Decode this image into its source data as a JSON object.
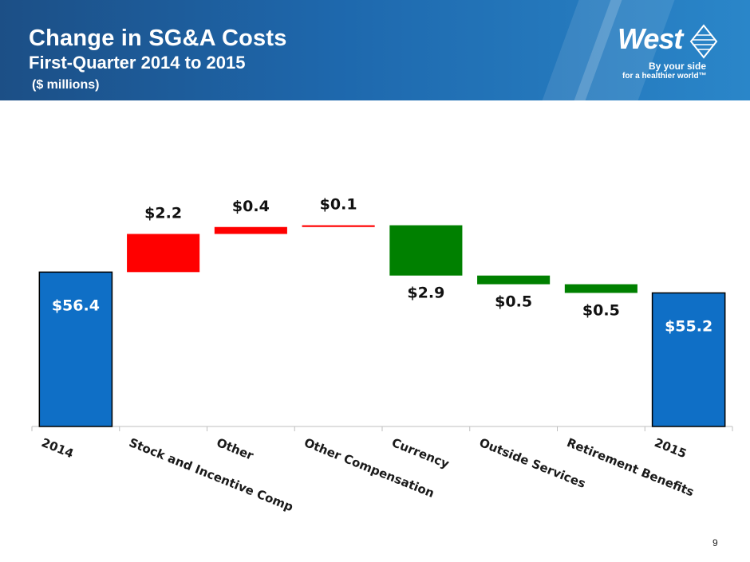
{
  "header": {
    "title": "Change in SG&A Costs",
    "subtitle": "First-Quarter 2014 to 2015",
    "units": "($ millions)"
  },
  "logo": {
    "wordmark": "West",
    "tagline_line1": "By your side",
    "tagline_line2": "for a healthier world™"
  },
  "page_number": "9",
  "colors": {
    "total": "#0f6fc6",
    "increase": "#ff0000",
    "decrease": "#008000"
  },
  "chart_data": {
    "type": "waterfall",
    "title": "Change in SG&A Costs",
    "ylabel": "$ millions",
    "ylim": [
      0,
      70
    ],
    "categories": [
      "2014",
      "Stock and Incentive Comp",
      "Other",
      "Other Compensation",
      "Currency",
      "Outside Services",
      "Retirement Benefits",
      "2015"
    ],
    "steps": [
      {
        "category": "2014",
        "kind": "total",
        "value": 56.4,
        "label": "$56.4"
      },
      {
        "category": "Stock and Incentive Comp",
        "kind": "increase",
        "value": 2.2,
        "label": "$2.2"
      },
      {
        "category": "Other",
        "kind": "increase",
        "value": 0.4,
        "label": "$0.4"
      },
      {
        "category": "Other Compensation",
        "kind": "increase",
        "value": 0.1,
        "label": "$0.1"
      },
      {
        "category": "Currency",
        "kind": "decrease",
        "value": 2.9,
        "label": "$2.9"
      },
      {
        "category": "Outside Services",
        "kind": "decrease",
        "value": 0.5,
        "label": "$0.5"
      },
      {
        "category": "Retirement Benefits",
        "kind": "decrease",
        "value": 0.5,
        "label": "$0.5"
      },
      {
        "category": "2015",
        "kind": "total",
        "value": 55.2,
        "label": "$55.2"
      }
    ]
  }
}
